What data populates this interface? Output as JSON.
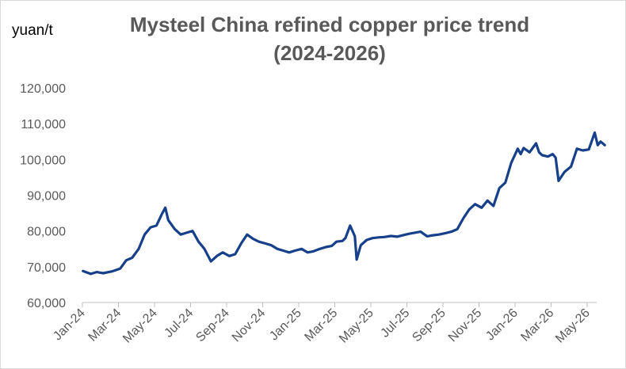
{
  "chart_data": {
    "type": "line",
    "title_line1": "Mysteel China refined copper price trend",
    "title_line2": "(2024-2026)",
    "ylabel": "yuan/t",
    "xlabel": "",
    "ylim": [
      60000,
      120000
    ],
    "y_ticks": [
      "60,000",
      "70,000",
      "80,000",
      "90,000",
      "100,000",
      "110,000",
      "120,000"
    ],
    "x_ticks": [
      "Jan-24",
      "Mar-24",
      "May-24",
      "Jul-24",
      "Sep-24",
      "Nov-24",
      "Jan-25",
      "Mar-25",
      "May-25",
      "Jul-25",
      "Sep-25",
      "Nov-25",
      "Jan-26",
      "Mar-26",
      "May-26"
    ],
    "grid": false,
    "legend": "none",
    "series_color": "#17408b",
    "series": [
      {
        "x": [
          "2024-01-02",
          "2024-01-15",
          "2024-01-25",
          "2024-02-05",
          "2024-02-20",
          "2024-03-05",
          "2024-03-15",
          "2024-03-25",
          "2024-04-05",
          "2024-04-15",
          "2024-04-25",
          "2024-05-05",
          "2024-05-15",
          "2024-05-20",
          "2024-05-25",
          "2024-06-05",
          "2024-06-15",
          "2024-06-25",
          "2024-07-05",
          "2024-07-15",
          "2024-07-25",
          "2024-08-05",
          "2024-08-15",
          "2024-08-25",
          "2024-09-05",
          "2024-09-15",
          "2024-09-25",
          "2024-10-05",
          "2024-10-15",
          "2024-10-25",
          "2024-11-05",
          "2024-11-15",
          "2024-11-25",
          "2024-12-05",
          "2024-12-15",
          "2024-12-25",
          "2025-01-05",
          "2025-01-15",
          "2025-01-25",
          "2025-02-05",
          "2025-02-15",
          "2025-02-25",
          "2025-03-05",
          "2025-03-15",
          "2025-03-20",
          "2025-03-28",
          "2025-04-05",
          "2025-04-08",
          "2025-04-15",
          "2025-04-25",
          "2025-05-05",
          "2025-05-15",
          "2025-05-25",
          "2025-06-05",
          "2025-06-15",
          "2025-06-25",
          "2025-07-05",
          "2025-07-15",
          "2025-07-25",
          "2025-08-05",
          "2025-08-15",
          "2025-08-25",
          "2025-09-05",
          "2025-09-15",
          "2025-09-25",
          "2025-10-05",
          "2025-10-15",
          "2025-10-25",
          "2025-11-05",
          "2025-11-15",
          "2025-11-25",
          "2025-12-05",
          "2025-12-15",
          "2025-12-25",
          "2026-01-05",
          "2026-01-10",
          "2026-01-15",
          "2026-01-25",
          "2026-02-05",
          "2026-02-10",
          "2026-02-15",
          "2026-02-25",
          "2026-03-05",
          "2026-03-10",
          "2026-03-15",
          "2026-03-25",
          "2026-04-05",
          "2026-04-15",
          "2026-04-25",
          "2026-05-05",
          "2026-05-15",
          "2026-05-20",
          "2026-05-25",
          "2026-06-01"
        ],
        "values": [
          68800,
          68000,
          68500,
          68200,
          68700,
          69500,
          71800,
          72500,
          75000,
          79000,
          81000,
          81500,
          85000,
          86500,
          83000,
          80500,
          79000,
          79500,
          80000,
          77000,
          75000,
          71500,
          73000,
          74000,
          73000,
          73500,
          76500,
          79000,
          77800,
          77000,
          76500,
          76000,
          75000,
          74500,
          74000,
          74500,
          75000,
          74000,
          74300,
          75000,
          75500,
          75800,
          77000,
          77200,
          78000,
          81500,
          78500,
          72000,
          76000,
          77500,
          78000,
          78200,
          78300,
          78600,
          78400,
          78800,
          79200,
          79500,
          79800,
          78500,
          78800,
          79000,
          79400,
          79800,
          80500,
          83500,
          86000,
          87500,
          86500,
          88500,
          87000,
          92000,
          93500,
          99000,
          103000,
          101500,
          103200,
          102000,
          104500,
          102000,
          101200,
          100800,
          101500,
          100500,
          94000,
          96500,
          98000,
          103000,
          102500,
          102800,
          107500,
          104000,
          105000,
          104000
        ]
      }
    ]
  }
}
